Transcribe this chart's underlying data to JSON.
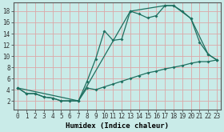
{
  "xlabel": "Humidex (Indice chaleur)",
  "bg_color": "#c9ebe8",
  "grid_color": "#dba8a8",
  "line_color": "#1e7060",
  "xlim": [
    -0.5,
    23.5
  ],
  "ylim": [
    0.5,
    19.5
  ],
  "xticks": [
    0,
    1,
    2,
    3,
    4,
    5,
    6,
    7,
    8,
    9,
    10,
    11,
    12,
    13,
    14,
    15,
    16,
    17,
    18,
    19,
    20,
    21,
    22,
    23
  ],
  "yticks": [
    2,
    4,
    6,
    8,
    10,
    12,
    14,
    16,
    18
  ],
  "line1_x": [
    0,
    1,
    2,
    3,
    4,
    5,
    6,
    7,
    8,
    9,
    10,
    11,
    12,
    13,
    14,
    15,
    16,
    17,
    18,
    19,
    20,
    21,
    22,
    23
  ],
  "line1_y": [
    4.3,
    3.3,
    3.3,
    2.7,
    2.5,
    2.0,
    2.0,
    2.0,
    5.5,
    9.5,
    14.5,
    12.8,
    13.0,
    18.0,
    17.5,
    16.8,
    17.2,
    19.0,
    19.0,
    18.0,
    16.7,
    12.5,
    10.3,
    9.3
  ],
  "line2_x": [
    0,
    1,
    2,
    3,
    4,
    5,
    6,
    7,
    8,
    9,
    10,
    11,
    12,
    13,
    14,
    15,
    16,
    17,
    18,
    19,
    20,
    21,
    22,
    23
  ],
  "line2_y": [
    4.3,
    3.3,
    3.3,
    2.7,
    2.5,
    2.0,
    2.0,
    2.0,
    4.3,
    4.0,
    4.5,
    5.0,
    5.5,
    6.0,
    6.5,
    7.0,
    7.3,
    7.7,
    8.0,
    8.3,
    8.7,
    9.0,
    9.0,
    9.3
  ],
  "line3_x": [
    0,
    7,
    13,
    17,
    18,
    20,
    22,
    23
  ],
  "line3_y": [
    4.3,
    2.0,
    18.0,
    19.0,
    19.0,
    16.7,
    10.3,
    9.3
  ],
  "xlabel_fontsize": 6.5,
  "tick_fontsize": 5.5
}
